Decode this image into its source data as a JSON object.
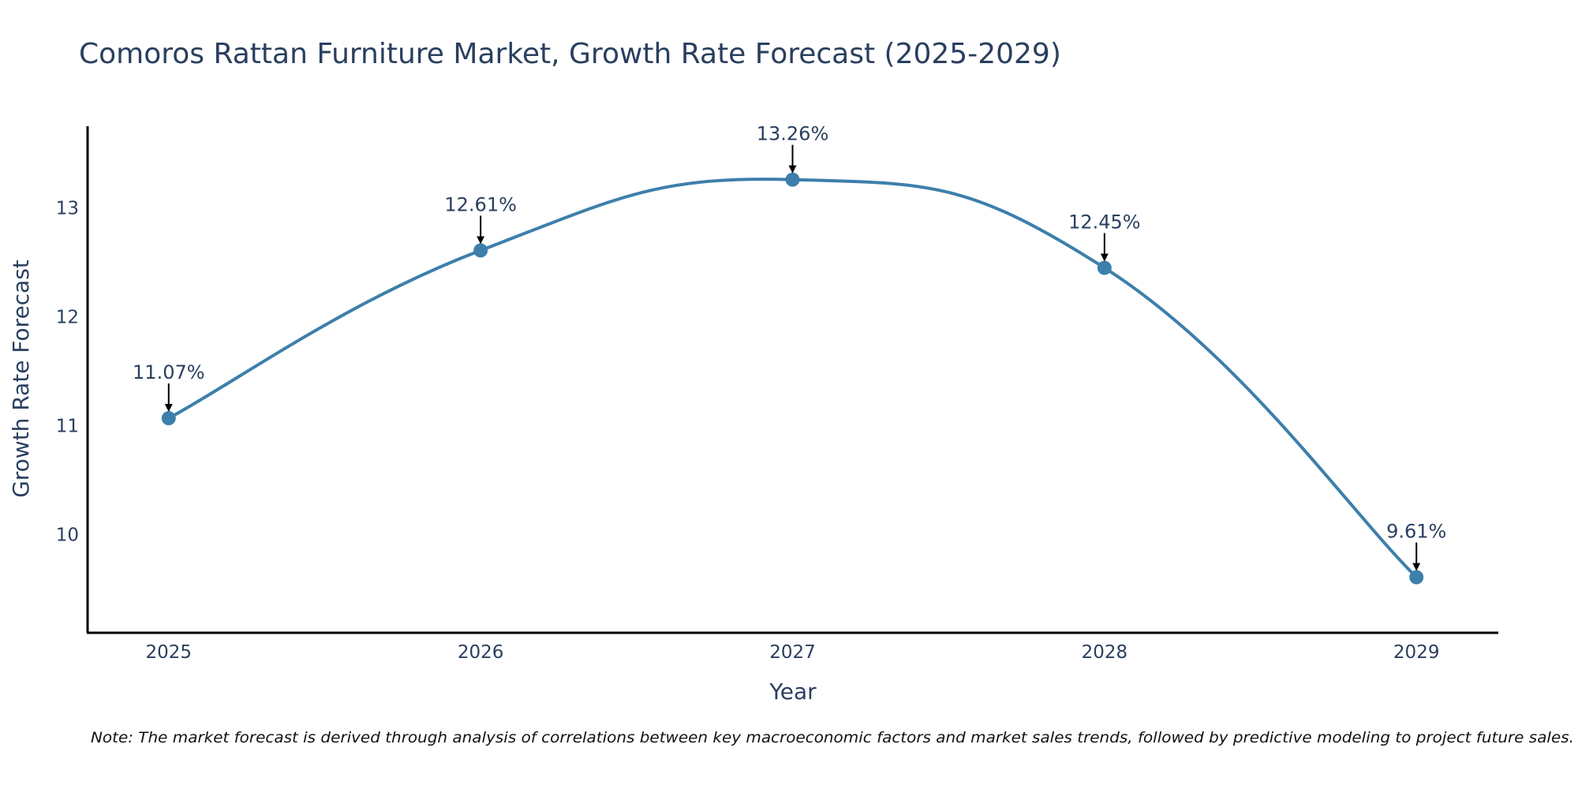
{
  "chart_data": {
    "type": "line",
    "title": "Comoros Rattan Furniture Market, Growth Rate Forecast (2025-2029)",
    "xlabel": "Year",
    "ylabel": "Growth Rate Forecast",
    "categories": [
      "2025",
      "2026",
      "2027",
      "2028",
      "2029"
    ],
    "series": [
      {
        "values": [
          11.07,
          12.61,
          13.26,
          12.45,
          9.61
        ],
        "color": "#3d7fab",
        "smooth": true,
        "markers": true
      }
    ],
    "data_labels": [
      "11.07%",
      "12.61%",
      "13.26%",
      "12.45%",
      "9.61%"
    ],
    "ylim": [
      9.1,
      13.75
    ],
    "yticks": [
      10,
      11,
      12,
      13
    ],
    "ytick_labels": [
      "10",
      "11",
      "12",
      "13"
    ],
    "grid": false,
    "legend": "none",
    "note": "Note: The market forecast is derived through analysis of correlations between key macroeconomic factors and market sales trends, followed by predictive modeling to project future sales."
  }
}
